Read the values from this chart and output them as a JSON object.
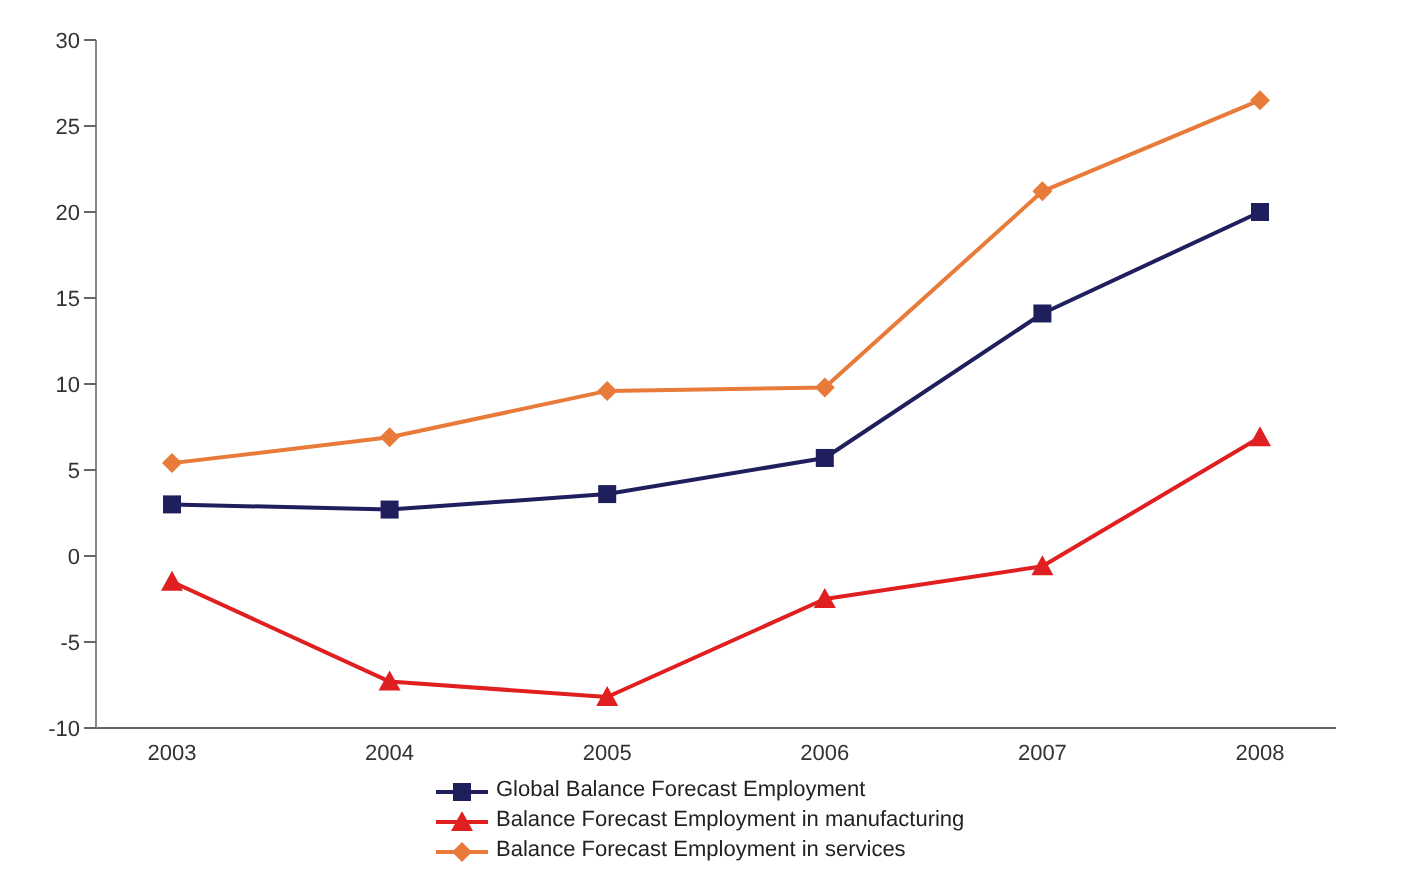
{
  "chart_data": {
    "type": "line",
    "categories": [
      "2003",
      "2004",
      "2005",
      "2006",
      "2007",
      "2008"
    ],
    "series": [
      {
        "name": "Global Balance Forecast Employment",
        "color": "#1f1f5e",
        "marker": "square",
        "values": [
          3.0,
          2.7,
          3.6,
          5.7,
          14.1,
          20.0
        ]
      },
      {
        "name": "Balance Forecast Employment in manufacturing",
        "color": "#e02020",
        "marker": "triangle",
        "values": [
          -1.5,
          -7.3,
          -8.2,
          -2.5,
          -0.6,
          6.9
        ]
      },
      {
        "name": "Balance Forecast Employment in services",
        "color": "#e87a3a",
        "marker": "diamond",
        "values": [
          5.4,
          6.9,
          9.6,
          9.8,
          21.2,
          26.5
        ]
      }
    ],
    "ylim": [
      -10,
      30
    ],
    "yticks": [
      -10,
      -5,
      0,
      5,
      10,
      15,
      20,
      25,
      30
    ],
    "grid": false,
    "legend": "bottom"
  }
}
